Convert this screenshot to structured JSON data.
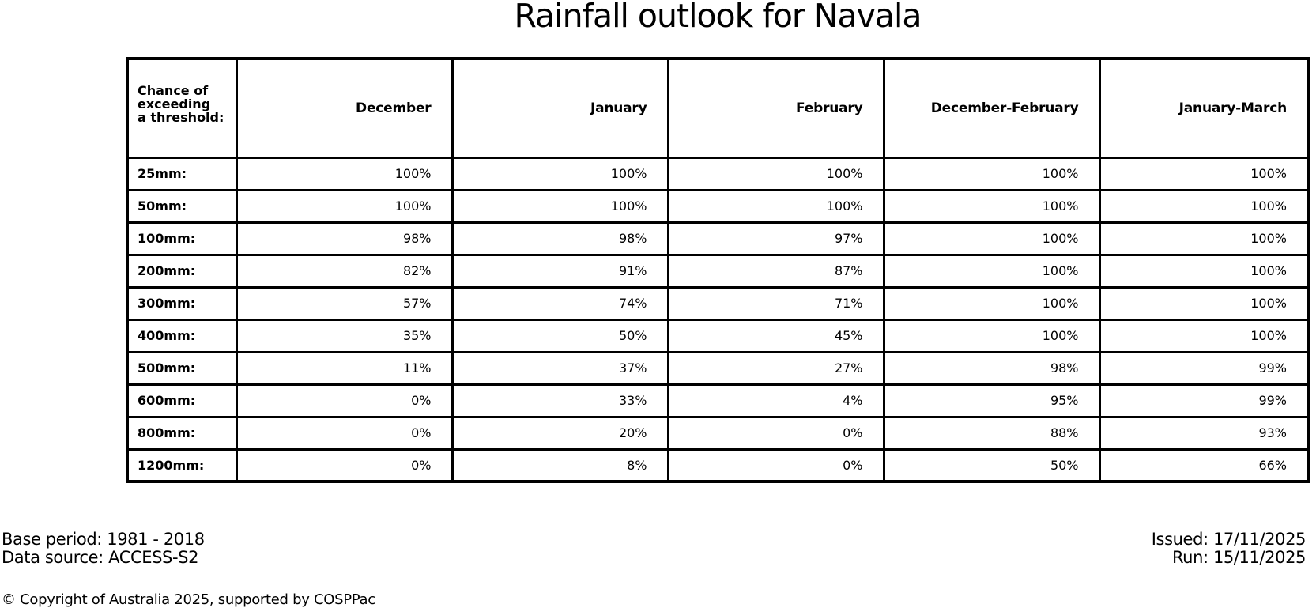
{
  "title": "Rainfall outlook for Navala",
  "chart_data": {
    "type": "table",
    "title": "Rainfall outlook for Navala",
    "corner_label": "Chance of\nexceeding\na threshold:",
    "columns": [
      "December",
      "January",
      "February",
      "December-February",
      "January-March"
    ],
    "rows": [
      {
        "label": "25mm:",
        "values": [
          "100%",
          "100%",
          "100%",
          "100%",
          "100%"
        ]
      },
      {
        "label": "50mm:",
        "values": [
          "100%",
          "100%",
          "100%",
          "100%",
          "100%"
        ]
      },
      {
        "label": "100mm:",
        "values": [
          "98%",
          "98%",
          "97%",
          "100%",
          "100%"
        ]
      },
      {
        "label": "200mm:",
        "values": [
          "82%",
          "91%",
          "87%",
          "100%",
          "100%"
        ]
      },
      {
        "label": "300mm:",
        "values": [
          "57%",
          "74%",
          "71%",
          "100%",
          "100%"
        ]
      },
      {
        "label": "400mm:",
        "values": [
          "35%",
          "50%",
          "45%",
          "100%",
          "100%"
        ]
      },
      {
        "label": "500mm:",
        "values": [
          "11%",
          "37%",
          "27%",
          "98%",
          "99%"
        ]
      },
      {
        "label": "600mm:",
        "values": [
          "0%",
          "33%",
          "4%",
          "95%",
          "99%"
        ]
      },
      {
        "label": "800mm:",
        "values": [
          "0%",
          "20%",
          "0%",
          "88%",
          "93%"
        ]
      },
      {
        "label": "1200mm:",
        "values": [
          "0%",
          "8%",
          "0%",
          "50%",
          "66%"
        ]
      }
    ],
    "values_percent": [
      [
        100,
        100,
        100,
        100,
        100
      ],
      [
        100,
        100,
        100,
        100,
        100
      ],
      [
        98,
        98,
        97,
        100,
        100
      ],
      [
        82,
        91,
        87,
        100,
        100
      ],
      [
        57,
        74,
        71,
        100,
        100
      ],
      [
        35,
        50,
        45,
        100,
        100
      ],
      [
        11,
        37,
        27,
        98,
        99
      ],
      [
        0,
        33,
        4,
        95,
        99
      ],
      [
        0,
        20,
        0,
        88,
        93
      ],
      [
        0,
        8,
        0,
        50,
        66
      ]
    ]
  },
  "footer": {
    "base_period": "Base period: 1981 - 2018",
    "data_source": "Data source: ACCESS-S2",
    "issued": "Issued: 17/11/2025",
    "run": "Run: 15/11/2025",
    "copyright": "© Copyright of Australia 2025, supported by COSPPac"
  },
  "colors": {
    "text": "#000000",
    "background": "#ffffff",
    "border": "#000000"
  }
}
